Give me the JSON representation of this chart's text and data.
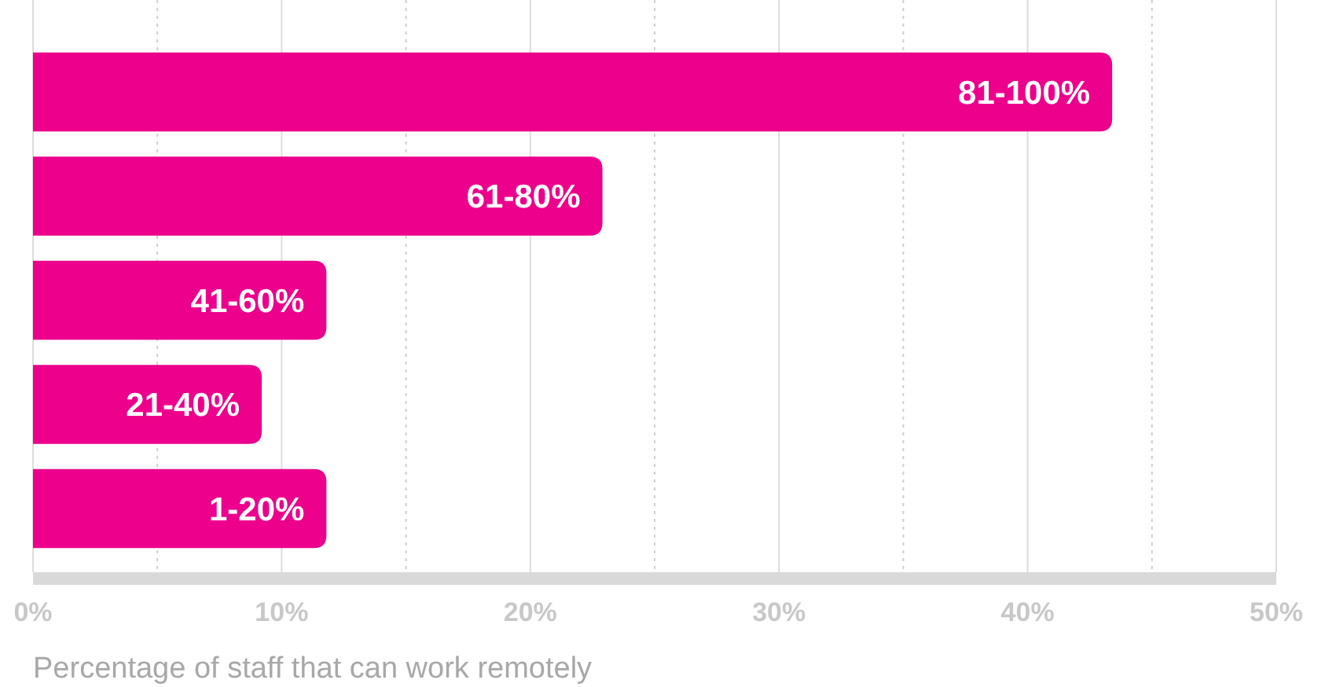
{
  "chart_data": {
    "type": "bar",
    "orientation": "horizontal",
    "xlabel": "Percentage of staff that can work remotely",
    "categories": [
      "81-100%",
      "61-80%",
      "41-60%",
      "21-40%",
      "1-20%"
    ],
    "values": [
      43.4,
      22.9,
      11.8,
      9.2,
      11.8
    ],
    "color": "#ec008c",
    "xlim": [
      0,
      50
    ],
    "xticks": [
      {
        "value": 0,
        "label": "0%"
      },
      {
        "value": 5,
        "label": null
      },
      {
        "value": 10,
        "label": "10%"
      },
      {
        "value": 15,
        "label": null
      },
      {
        "value": 20,
        "label": "20%"
      },
      {
        "value": 25,
        "label": null
      },
      {
        "value": 30,
        "label": "30%"
      },
      {
        "value": 35,
        "label": null
      },
      {
        "value": 40,
        "label": "40%"
      },
      {
        "value": 45,
        "label": null
      },
      {
        "value": 50,
        "label": "50%"
      }
    ],
    "grid": "x"
  }
}
